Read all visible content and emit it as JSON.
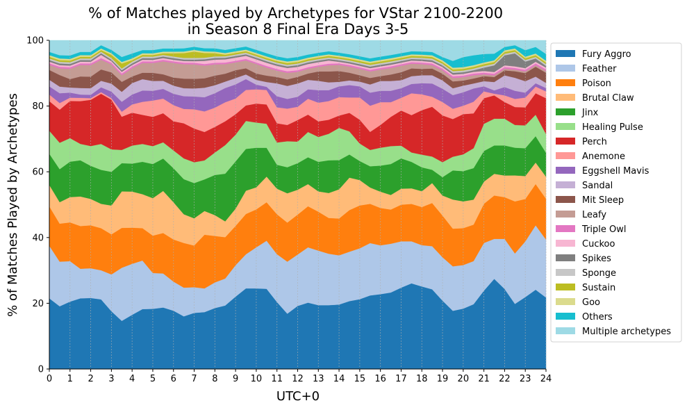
{
  "chart_data": {
    "type": "area",
    "stacked": true,
    "title": "% of Matches played by Archetypes for VStar 2100-2200\nin Season 8 Final Era Days 3-5",
    "xlabel": "UTC+0",
    "ylabel": "% of Matches Played by Archetypes",
    "xlim": [
      0,
      24
    ],
    "ylim": [
      0,
      100
    ],
    "xticks": [
      "0",
      "1",
      "2",
      "3",
      "4",
      "5",
      "6",
      "7",
      "8",
      "9",
      "10",
      "11",
      "12",
      "13",
      "14",
      "15",
      "16",
      "17",
      "18",
      "19",
      "20",
      "21",
      "22",
      "23",
      "24"
    ],
    "yticks": [
      "0",
      "20",
      "40",
      "60",
      "80",
      "100"
    ],
    "grid": "vertical dashed",
    "legend_position": "right",
    "x": [
      0,
      0.5,
      1,
      1.5,
      2,
      2.5,
      3,
      3.5,
      4,
      4.5,
      5,
      5.5,
      6,
      6.5,
      7,
      7.5,
      8,
      8.5,
      9,
      9.5,
      10,
      10.5,
      11,
      11.5,
      12,
      12.5,
      13,
      13.5,
      14,
      14.5,
      15,
      15.5,
      16,
      16.5,
      17,
      17.5,
      18,
      18.5,
      19,
      19.5,
      20,
      20.5,
      21,
      21.5,
      22,
      22.5,
      23,
      23.5,
      24
    ],
    "series": [
      {
        "name": "Fury Aggro",
        "color": "#1f77b4",
        "values": [
          21.5,
          19,
          20,
          21.5,
          21.5,
          21.5,
          18,
          14.5,
          16.5,
          18.5,
          18.5,
          19,
          18,
          16.5,
          17.5,
          18,
          19,
          20,
          23,
          26,
          25.5,
          25,
          21,
          17,
          19,
          21,
          20.5,
          20.5,
          21,
          22,
          22,
          22.5,
          23,
          23.5,
          25.5,
          27.5,
          26,
          24,
          20.5,
          17,
          18,
          19.5,
          23,
          27,
          24,
          20,
          22,
          24,
          21
        ]
      },
      {
        "name": "Feather",
        "color": "#aec7e8",
        "values": [
          16,
          13.5,
          12,
          9,
          9,
          9,
          11.5,
          16,
          15.5,
          15,
          11,
          10.5,
          9,
          9,
          8,
          7.5,
          8,
          8.5,
          10,
          11,
          13,
          15,
          15,
          16,
          15.5,
          17.5,
          17.5,
          16.5,
          16,
          16,
          16,
          16,
          15,
          15,
          14.5,
          13.5,
          13,
          13,
          13,
          13,
          13,
          13,
          14,
          12,
          15,
          15.5,
          17,
          19.5,
          17
        ]
      },
      {
        "name": "Poison",
        "color": "#ff7f0e",
        "values": [
          12,
          11.5,
          11.5,
          13,
          13,
          13,
          12.5,
          12,
          11,
          10,
          11.5,
          12.5,
          13,
          14,
          13,
          17,
          14.5,
          13,
          12.5,
          13,
          12,
          12,
          12.5,
          12,
          12,
          13,
          12.5,
          11.5,
          12,
          13.5,
          13.5,
          12,
          11.5,
          10.5,
          11.5,
          12,
          12,
          13,
          12.5,
          11,
          11,
          11,
          11.5,
          13,
          12.5,
          16,
          13,
          12.5,
          12
        ]
      },
      {
        "name": "Brutal Claw",
        "color": "#ffbb78",
        "values": [
          6.5,
          6.5,
          7.5,
          9,
          8,
          7.5,
          9,
          11,
          11,
          10.5,
          11.5,
          13,
          11.5,
          9,
          8.5,
          7.5,
          6.5,
          5,
          5.5,
          7.5,
          7,
          8,
          8,
          9,
          7.5,
          7,
          6.5,
          8,
          9.5,
          10.5,
          8,
          5,
          5,
          4.5,
          5,
          5,
          5,
          6,
          6,
          8.5,
          8,
          7.5,
          6.5,
          6.5,
          6.5,
          8,
          7,
          6.5,
          6.5
        ]
      },
      {
        "name": "Jinx",
        "color": "#2ca02c",
        "values": [
          9.5,
          10,
          10.5,
          11,
          10,
          10.5,
          10.5,
          8.5,
          8.5,
          10,
          10.5,
          10,
          10.5,
          11,
          11,
          10,
          12.5,
          15,
          15,
          13.5,
          12.5,
          9,
          7.5,
          8,
          8,
          8.5,
          9.5,
          10.5,
          9.5,
          7.5,
          6,
          6.5,
          8,
          9.5,
          9.5,
          8.5,
          7.5,
          4,
          5.5,
          8.5,
          9,
          9.5,
          9,
          8.5,
          9,
          8.5,
          8.5,
          8,
          7
        ]
      },
      {
        "name": "Healing Pulse",
        "color": "#98df8a",
        "values": [
          7,
          8,
          7,
          5,
          6,
          8,
          7,
          4,
          5.5,
          5.5,
          5.5,
          5,
          5.5,
          6.5,
          6.5,
          6,
          7,
          9,
          8.5,
          9,
          8,
          7.5,
          7,
          8,
          6.5,
          8,
          8,
          8.5,
          10.5,
          7.5,
          5.5,
          5,
          5.5,
          5.5,
          4,
          3,
          4,
          4,
          4.5,
          4,
          5,
          6,
          8,
          8,
          8,
          7,
          7,
          6.5,
          5.5
        ]
      },
      {
        "name": "Perch",
        "color": "#d62728",
        "values": [
          9,
          10,
          11,
          13,
          14,
          15.5,
          15.5,
          10,
          10,
          9,
          9,
          9,
          9,
          11,
          10.5,
          9,
          8,
          7.5,
          6.5,
          5,
          6,
          6,
          6,
          5,
          6.5,
          5.5,
          5,
          4.5,
          4,
          6,
          7.5,
          5.5,
          7,
          9,
          11,
          12,
          14,
          15,
          14,
          11,
          12,
          10.5,
          7.5,
          7,
          5,
          5.5,
          5.5,
          6.5,
          10.5
        ]
      },
      {
        "name": "Anemone",
        "color": "#ff9896",
        "values": [
          2,
          2,
          1,
          1,
          0.5,
          0.5,
          0.5,
          1.5,
          2.5,
          4,
          5,
          4.5,
          5,
          4.5,
          6,
          6.5,
          6,
          6,
          5,
          5,
          4.5,
          4.5,
          5,
          5,
          4,
          5,
          6,
          6,
          6,
          5,
          7,
          8,
          7,
          4.5,
          4,
          7,
          5,
          3,
          4,
          3,
          2.5,
          3.5,
          2,
          0.5,
          2,
          2.5,
          3,
          2,
          2
        ]
      },
      {
        "name": "Eggshell Mavis",
        "color": "#9467bd",
        "values": [
          2.5,
          3,
          1.5,
          1,
          1,
          1.5,
          2,
          3,
          3,
          3.5,
          3,
          3,
          3.5,
          4,
          4,
          4.5,
          4.5,
          4.5,
          4.5,
          3.5,
          1.5,
          1,
          3.5,
          3,
          3,
          3,
          4,
          3.5,
          3.5,
          4,
          3.5,
          4,
          3.5,
          3.5,
          3,
          3,
          3.5,
          4,
          4,
          4,
          4,
          4,
          1.5,
          1,
          2.5,
          2.5,
          1.5,
          1,
          1
        ]
      },
      {
        "name": "Sandal",
        "color": "#c5b0d5",
        "values": [
          2,
          2,
          1.5,
          2,
          2,
          2,
          2.5,
          3,
          3.5,
          3.5,
          3,
          2.5,
          2.5,
          2.5,
          2.5,
          3,
          2.5,
          2,
          2,
          1.5,
          1.5,
          1.5,
          4,
          4,
          4,
          3,
          3,
          2.5,
          1.5,
          1.5,
          1.5,
          2.5,
          3,
          3,
          2.5,
          2.5,
          2.5,
          2.5,
          2.5,
          2,
          2,
          1.5,
          1.5,
          2.5,
          3.5,
          4,
          3.5,
          2,
          1.5
        ]
      },
      {
        "name": "Mit Sleep",
        "color": "#8c564b",
        "values": [
          3,
          3.5,
          2.5,
          3.5,
          3.5,
          3.5,
          3.5,
          3,
          2,
          2,
          2.5,
          2,
          2.5,
          3,
          3,
          3,
          3,
          2.5,
          2.5,
          2,
          2,
          2,
          2,
          2,
          2,
          2,
          3,
          3.5,
          3.5,
          2.5,
          2,
          2,
          1.5,
          2,
          2.5,
          2.5,
          2,
          2,
          2,
          2,
          1.5,
          1.5,
          1.5,
          1.5,
          1.5,
          2,
          2.5,
          3,
          3
        ]
      },
      {
        "name": "Leafy",
        "color": "#c49c94",
        "values": [
          1.5,
          2,
          3,
          3.5,
          3.5,
          3,
          2.5,
          2,
          2.5,
          3,
          3,
          4,
          4.5,
          4.5,
          4.5,
          4,
          3.5,
          3,
          2.5,
          2.5,
          3,
          2.5,
          2,
          2,
          1.5,
          1.5,
          1.5,
          2,
          2,
          2,
          2,
          2,
          2,
          2,
          2,
          1.5,
          1.5,
          1,
          1,
          1,
          1,
          1,
          0.5,
          0.5,
          0.5,
          0.5,
          0.5,
          0.5,
          0.5
        ]
      },
      {
        "name": "Triple Owl",
        "color": "#e377c2",
        "values": [
          0.5,
          0.5,
          0.5,
          0.5,
          0.5,
          0.5,
          0.5,
          0.5,
          0.5,
          0.5,
          0.5,
          0.5,
          0.5,
          0.5,
          0.5,
          0.5,
          0.5,
          0.5,
          0.5,
          0.5,
          0.5,
          0.5,
          0.5,
          0.5,
          0.5,
          0.5,
          0.5,
          0.5,
          0.5,
          0.5,
          0.5,
          0.5,
          0.5,
          0.5,
          0.5,
          0.5,
          0.5,
          0.5,
          0.5,
          0.5,
          0.5,
          0.5,
          0.5,
          0.5,
          0.5,
          0.5,
          0.5,
          0.5,
          0.5
        ]
      },
      {
        "name": "Cuckoo",
        "color": "#f7b6d2",
        "values": [
          0.5,
          0.5,
          0.5,
          0.5,
          0.5,
          1,
          0.5,
          0.5,
          0.5,
          0.5,
          0.5,
          0.5,
          0.5,
          0.5,
          0.5,
          1,
          1,
          1,
          1,
          1,
          1,
          1,
          1,
          1,
          1,
          1,
          1,
          1,
          0.5,
          0.5,
          0.5,
          0.5,
          0.5,
          0.5,
          0.5,
          0.5,
          0.5,
          0.5,
          0.5,
          0.5,
          0.5,
          0.5,
          0.5,
          0.5,
          0.5,
          0.5,
          0.5,
          0.5,
          0.5
        ]
      },
      {
        "name": "Spikes",
        "color": "#7f7f7f",
        "values": [
          0.5,
          0.5,
          0.5,
          0.5,
          0.5,
          0.5,
          0.5,
          0.5,
          0.5,
          0.5,
          0.5,
          0.5,
          0.5,
          0.5,
          0.5,
          0.5,
          0.5,
          0.5,
          0.5,
          0.5,
          0.5,
          0.5,
          0.5,
          0.5,
          0.5,
          0.5,
          0.5,
          0.5,
          0.5,
          0.5,
          0.5,
          0.5,
          0.5,
          0.5,
          0.5,
          0.5,
          0.5,
          0.5,
          0.5,
          0.5,
          0.5,
          0.5,
          1,
          2,
          3,
          4,
          2,
          1,
          0.5
        ]
      },
      {
        "name": "Sponge",
        "color": "#c7c7c7",
        "values": [
          0.5,
          0.5,
          0.5,
          0.5,
          0.5,
          0.5,
          0.5,
          0.5,
          0.5,
          0.5,
          0.5,
          0.5,
          0.5,
          0.5,
          0.5,
          0.5,
          0.5,
          0.5,
          0.5,
          0.5,
          0.5,
          0.5,
          0.5,
          0.5,
          0.5,
          0.5,
          0.5,
          0.5,
          0.5,
          0.5,
          0.5,
          0.5,
          0.5,
          0.5,
          0.5,
          0.5,
          0.5,
          0.5,
          0.5,
          0.5,
          0.5,
          0.5,
          0.5,
          0.5,
          0.5,
          0.5,
          0.5,
          0.5,
          0.5
        ]
      },
      {
        "name": "Sustain",
        "color": "#bcbd22",
        "values": [
          0.5,
          0.5,
          0.5,
          0.5,
          0.5,
          0.5,
          1,
          1.5,
          0.5,
          0.5,
          0.5,
          0.5,
          1,
          1.5,
          2,
          1.5,
          1,
          0.5,
          0.5,
          0.5,
          0.5,
          0.5,
          0.5,
          0.5,
          0.5,
          0.5,
          0.5,
          0.5,
          0.5,
          0.5,
          0.5,
          0.5,
          0.5,
          0.5,
          0.5,
          0.5,
          0.5,
          0.5,
          0.5,
          0.5,
          0.5,
          0.5,
          0.5,
          0.5,
          0.5,
          0.5,
          0.5,
          0.5,
          0.5
        ]
      },
      {
        "name": "Goo",
        "color": "#dbdb8d",
        "values": [
          0.5,
          0.5,
          0.5,
          0.5,
          0.5,
          0.5,
          0.5,
          0.5,
          0.5,
          0.5,
          0.5,
          0.5,
          0.5,
          0.5,
          0.5,
          0.5,
          0.5,
          0.5,
          0.5,
          0.5,
          0.5,
          0.5,
          0.5,
          0.5,
          0.5,
          0.5,
          0.5,
          0.5,
          0.5,
          0.5,
          0.5,
          0.5,
          0.5,
          0.5,
          0.5,
          0.5,
          0.5,
          0.5,
          0.5,
          0.5,
          0.5,
          0.5,
          0.5,
          0.5,
          0.5,
          0.5,
          0.5,
          0.5,
          0.5
        ]
      },
      {
        "name": "Others",
        "color": "#17becf",
        "values": [
          1,
          1,
          1,
          1,
          1,
          1,
          1,
          1.5,
          1.5,
          1,
          1,
          1,
          1,
          1,
          1,
          1,
          1,
          1,
          1,
          1,
          1,
          1,
          1,
          1,
          1,
          1,
          1,
          1,
          1,
          1,
          1,
          1,
          1,
          1,
          1,
          1,
          1,
          1,
          1,
          2,
          3,
          3,
          2.5,
          2,
          1,
          1,
          2,
          2,
          2
        ]
      },
      {
        "name": "Multiple archetypes",
        "color": "#9edae5",
        "values": [
          3.5,
          4.5,
          4.5,
          3.5,
          3.5,
          1.5,
          3,
          5,
          4,
          3,
          3,
          2.5,
          2.5,
          2.5,
          2,
          2.5,
          2.5,
          3,
          2.5,
          2,
          3,
          4,
          5,
          5.5,
          5,
          4.5,
          4,
          3.5,
          4,
          4.5,
          5,
          5.5,
          5,
          4.5,
          4,
          3.5,
          3.5,
          3.5,
          5,
          6,
          5,
          4.5,
          4,
          4,
          2,
          1.5,
          3,
          2,
          4
        ]
      }
    ]
  }
}
